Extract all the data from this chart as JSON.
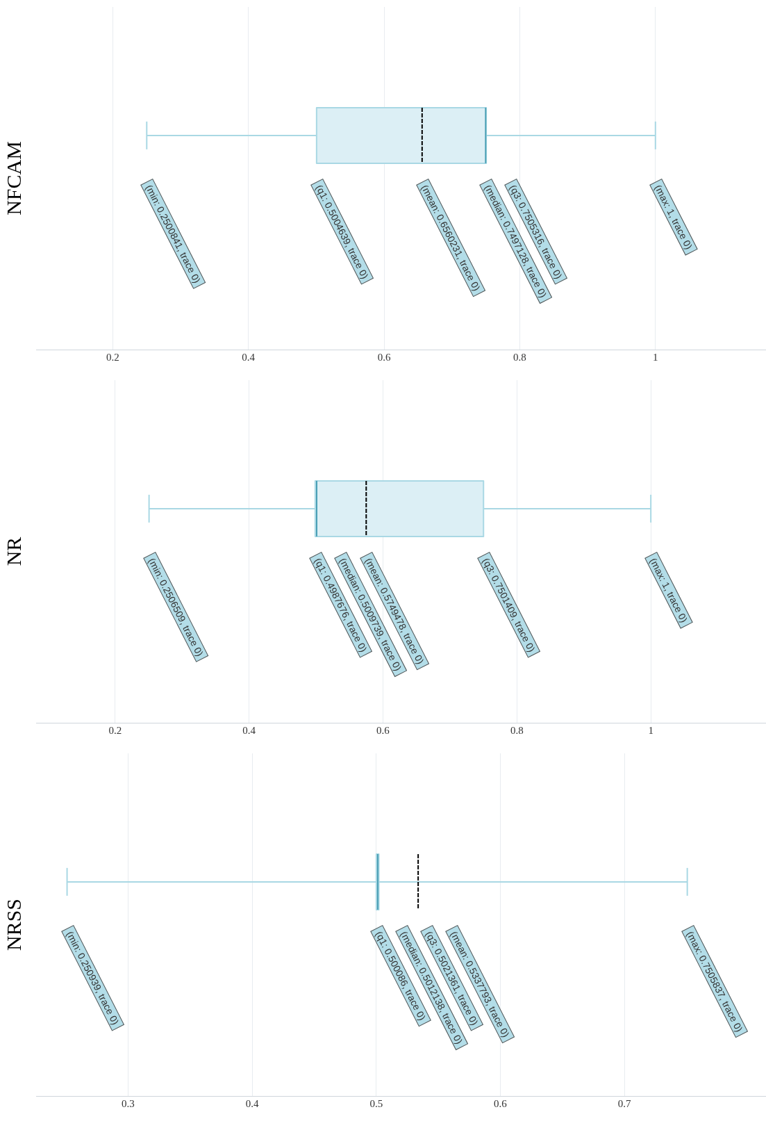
{
  "chart_data": [
    {
      "type": "box",
      "orientation": "horizontal",
      "ylabel": "NFCAM",
      "categories": [
        null
      ],
      "color": "#dceff5",
      "boxes": [
        {
          "low": 0.2500841,
          "q1": 0.5004639,
          "median": 0.7497128,
          "q3": 0.7505316,
          "high": 1,
          "mean": 0.6560231
        }
      ],
      "xlim": [
        0.087,
        1.163
      ],
      "xticks": [
        0.2,
        0.4,
        0.6,
        0.8,
        1
      ],
      "grid": "x",
      "annotations": [
        "(min: 0.2500841, trace 0)",
        "(q1: 0.5004639, trace 0)",
        "(mean: 0.6560231, trace 0)",
        "(median: 0.7497128, trace 0)",
        "(q3: 0.7505316, trace 0)",
        "(max: 1, trace 0)"
      ]
    },
    {
      "type": "box",
      "orientation": "horizontal",
      "ylabel": "NR",
      "categories": [
        null
      ],
      "color": "#dceff5",
      "boxes": [
        {
          "low": 0.2506509,
          "q1": 0.4987676,
          "median": 0.5009739,
          "q3": 0.7501409,
          "high": 1,
          "mean": 0.5749478
        }
      ],
      "xlim": [
        0.082,
        1.172
      ],
      "xticks": [
        0.2,
        0.4,
        0.6,
        0.8,
        1
      ],
      "grid": "x",
      "annotations": [
        "(min: 0.2506509, trace 0)",
        "(q1: 0.4987676, trace 0)",
        "(median: 0.5009739, trace 0)",
        "(mean: 0.5749478, trace 0)",
        "(q3: 0.7501409, trace 0)",
        "(max: 1, trace 0)"
      ]
    },
    {
      "type": "box",
      "orientation": "horizontal",
      "ylabel": "NRSS",
      "categories": [
        null
      ],
      "color": "#dceff5",
      "boxes": [
        {
          "low": 0.250939,
          "q1": 0.500086,
          "median": 0.5012138,
          "q3": 0.5021361,
          "high": 0.7505837,
          "mean": 0.5337793
        }
      ],
      "xlim": [
        0.226,
        0.814
      ],
      "xticks": [
        0.3,
        0.4,
        0.5,
        0.6,
        0.7
      ],
      "grid": "x",
      "annotations": [
        "(min: 0.250939, trace 0)",
        "(q1: 0.500086, trace 0)",
        "(median: 0.5012138, trace 0)",
        "(q3: 0.5021361, trace 0)",
        "(mean: 0.5337793, trace 0)",
        "(max: 0.7505837, trace 0)"
      ]
    }
  ]
}
